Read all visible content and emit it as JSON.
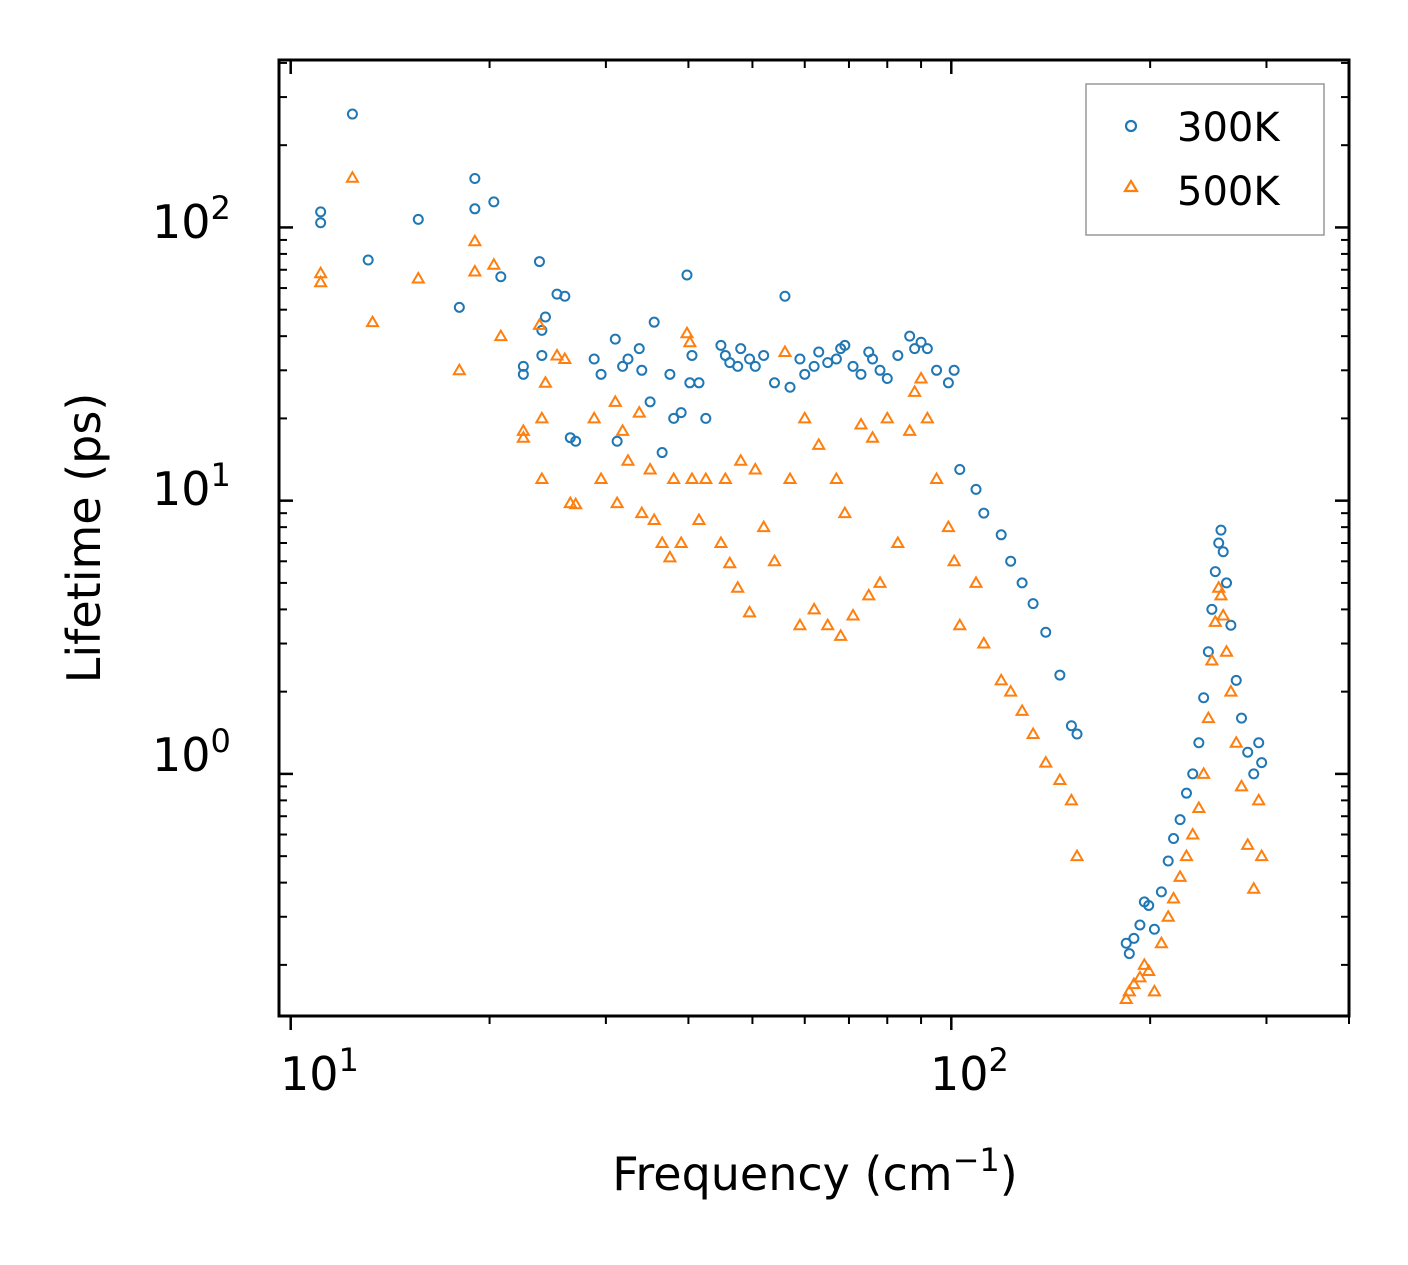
{
  "chart_data": {
    "type": "scatter",
    "xscale": "log",
    "yscale": "log",
    "xlabel": "Frequency",
    "xlabel_unit_base": "cm",
    "xlabel_unit_exp": "−1",
    "ylabel": "Lifetime (ps)",
    "xlim": [
      9.6,
      400
    ],
    "ylim": [
      0.13,
      410
    ],
    "x_ticks": [
      {
        "value": 10,
        "base": "10",
        "exp": "1"
      },
      {
        "value": 100,
        "base": "10",
        "exp": "2"
      }
    ],
    "y_ticks": [
      {
        "value": 1,
        "base": "10",
        "exp": "0"
      },
      {
        "value": 10,
        "base": "10",
        "exp": "1"
      },
      {
        "value": 100,
        "base": "10",
        "exp": "2"
      }
    ],
    "legend_position": "top-right",
    "series": [
      {
        "name": "300K",
        "marker": "circle",
        "color": "#1f77b4",
        "points": [
          [
            11.1,
            114
          ],
          [
            11.1,
            104
          ],
          [
            12.4,
            260
          ],
          [
            13.1,
            76
          ],
          [
            15.6,
            107
          ],
          [
            18.0,
            51
          ],
          [
            19.0,
            151
          ],
          [
            19.0,
            117
          ],
          [
            20.3,
            124
          ],
          [
            20.8,
            66
          ],
          [
            22.5,
            31
          ],
          [
            22.5,
            29
          ],
          [
            23.8,
            75
          ],
          [
            24.0,
            42
          ],
          [
            24.3,
            47
          ],
          [
            24.0,
            34
          ],
          [
            25.3,
            57
          ],
          [
            26.0,
            56
          ],
          [
            26.5,
            17
          ],
          [
            27.0,
            16.5
          ],
          [
            28.8,
            33
          ],
          [
            29.5,
            29
          ],
          [
            31.0,
            39
          ],
          [
            31.2,
            16.5
          ],
          [
            31.8,
            31
          ],
          [
            32.4,
            33
          ],
          [
            33.7,
            36
          ],
          [
            34.0,
            30
          ],
          [
            35.0,
            23
          ],
          [
            35.5,
            45
          ],
          [
            36.5,
            15
          ],
          [
            37.5,
            29
          ],
          [
            38.0,
            20
          ],
          [
            39.0,
            21
          ],
          [
            39.8,
            67
          ],
          [
            40.2,
            27
          ],
          [
            40.5,
            34
          ],
          [
            41.5,
            27
          ],
          [
            42.5,
            20
          ],
          [
            44.8,
            37
          ],
          [
            45.5,
            34
          ],
          [
            46.2,
            32
          ],
          [
            47.5,
            31
          ],
          [
            48.0,
            36
          ],
          [
            49.5,
            33
          ],
          [
            50.5,
            31
          ],
          [
            52.0,
            34
          ],
          [
            54.0,
            27
          ],
          [
            56.0,
            56
          ],
          [
            57.0,
            26
          ],
          [
            59.0,
            33
          ],
          [
            60.0,
            29
          ],
          [
            62.0,
            31
          ],
          [
            63.0,
            35
          ],
          [
            65.0,
            32
          ],
          [
            67.0,
            33
          ],
          [
            68.0,
            36
          ],
          [
            69.0,
            37
          ],
          [
            71.0,
            31
          ],
          [
            73.0,
            29
          ],
          [
            75.0,
            35
          ],
          [
            76.0,
            33
          ],
          [
            78.0,
            30
          ],
          [
            80.0,
            28
          ],
          [
            83.0,
            34
          ],
          [
            86.5,
            40
          ],
          [
            88.0,
            36
          ],
          [
            90.0,
            38
          ],
          [
            92.0,
            36
          ],
          [
            95.0,
            30
          ],
          [
            99.0,
            27
          ],
          [
            101.0,
            30
          ],
          [
            103.0,
            13
          ],
          [
            109.0,
            11
          ],
          [
            112.0,
            9
          ],
          [
            119.0,
            7.5
          ],
          [
            123.0,
            6
          ],
          [
            128.0,
            5
          ],
          [
            133.0,
            4.2
          ],
          [
            139.0,
            3.3
          ],
          [
            146.0,
            2.3
          ],
          [
            152.0,
            1.5
          ],
          [
            155.0,
            1.4
          ],
          [
            184.0,
            0.24
          ],
          [
            186.0,
            0.22
          ],
          [
            189.0,
            0.25
          ],
          [
            193.0,
            0.28
          ],
          [
            196.0,
            0.34
          ],
          [
            199.0,
            0.33
          ],
          [
            203.0,
            0.27
          ],
          [
            208.0,
            0.37
          ],
          [
            213.0,
            0.48
          ],
          [
            217.0,
            0.58
          ],
          [
            222.0,
            0.68
          ],
          [
            227.0,
            0.85
          ],
          [
            232.0,
            1.0
          ],
          [
            237.0,
            1.3
          ],
          [
            241.0,
            1.9
          ],
          [
            245.0,
            2.8
          ],
          [
            248.0,
            4.0
          ],
          [
            251.0,
            5.5
          ],
          [
            254.0,
            7.0
          ],
          [
            256.0,
            7.8
          ],
          [
            258.0,
            6.5
          ],
          [
            261.0,
            5.0
          ],
          [
            265.0,
            3.5
          ],
          [
            270.0,
            2.2
          ],
          [
            275.0,
            1.6
          ],
          [
            281.0,
            1.2
          ],
          [
            287.0,
            1.0
          ],
          [
            292.0,
            1.3
          ],
          [
            295.0,
            1.1
          ]
        ]
      },
      {
        "name": "500K",
        "marker": "triangle",
        "color": "#ff7f0e",
        "points": [
          [
            11.1,
            68
          ],
          [
            11.1,
            63
          ],
          [
            12.4,
            152
          ],
          [
            13.3,
            45
          ],
          [
            15.6,
            65
          ],
          [
            18.0,
            30
          ],
          [
            19.0,
            89
          ],
          [
            19.0,
            69
          ],
          [
            20.3,
            73
          ],
          [
            20.8,
            40
          ],
          [
            22.5,
            18
          ],
          [
            22.5,
            17
          ],
          [
            23.8,
            44
          ],
          [
            24.0,
            20
          ],
          [
            24.3,
            27
          ],
          [
            24.0,
            12
          ],
          [
            25.3,
            34
          ],
          [
            26.0,
            33
          ],
          [
            26.5,
            9.8
          ],
          [
            27.0,
            9.7
          ],
          [
            28.8,
            20
          ],
          [
            29.5,
            12
          ],
          [
            31.0,
            23
          ],
          [
            31.2,
            9.8
          ],
          [
            31.8,
            18
          ],
          [
            32.4,
            14
          ],
          [
            33.7,
            21
          ],
          [
            34.0,
            9
          ],
          [
            35.0,
            13
          ],
          [
            35.5,
            8.5
          ],
          [
            36.5,
            7.0
          ],
          [
            37.5,
            6.2
          ],
          [
            38.0,
            12
          ],
          [
            39.0,
            7.0
          ],
          [
            39.8,
            41
          ],
          [
            40.2,
            38
          ],
          [
            40.5,
            12
          ],
          [
            41.5,
            8.5
          ],
          [
            42.5,
            12
          ],
          [
            44.8,
            7.0
          ],
          [
            45.5,
            12
          ],
          [
            46.2,
            5.9
          ],
          [
            47.5,
            4.8
          ],
          [
            48.0,
            14
          ],
          [
            49.5,
            3.9
          ],
          [
            50.5,
            13
          ],
          [
            52.0,
            8.0
          ],
          [
            54.0,
            6.0
          ],
          [
            56.0,
            35
          ],
          [
            57.0,
            12
          ],
          [
            59.0,
            3.5
          ],
          [
            60.0,
            20
          ],
          [
            62.0,
            4.0
          ],
          [
            63.0,
            16
          ],
          [
            65.0,
            3.5
          ],
          [
            67.0,
            12
          ],
          [
            68.0,
            3.2
          ],
          [
            69.0,
            9.0
          ],
          [
            71.0,
            3.8
          ],
          [
            73.0,
            19
          ],
          [
            75.0,
            4.5
          ],
          [
            76.0,
            17
          ],
          [
            78.0,
            5.0
          ],
          [
            80.0,
            20
          ],
          [
            83.0,
            7.0
          ],
          [
            86.5,
            18
          ],
          [
            88.0,
            25
          ],
          [
            90.0,
            28
          ],
          [
            92.0,
            20
          ],
          [
            95.0,
            12
          ],
          [
            99.0,
            8.0
          ],
          [
            101.0,
            6.0
          ],
          [
            103.0,
            3.5
          ],
          [
            109.0,
            5.0
          ],
          [
            112.0,
            3.0
          ],
          [
            119.0,
            2.2
          ],
          [
            123.0,
            2.0
          ],
          [
            128.0,
            1.7
          ],
          [
            133.0,
            1.4
          ],
          [
            139.0,
            1.1
          ],
          [
            146.0,
            0.95
          ],
          [
            152.0,
            0.8
          ],
          [
            155.0,
            0.5
          ],
          [
            184.0,
            0.15
          ],
          [
            186.0,
            0.16
          ],
          [
            189.0,
            0.17
          ],
          [
            193.0,
            0.18
          ],
          [
            196.0,
            0.2
          ],
          [
            199.0,
            0.19
          ],
          [
            203.0,
            0.16
          ],
          [
            208.0,
            0.24
          ],
          [
            213.0,
            0.3
          ],
          [
            217.0,
            0.35
          ],
          [
            222.0,
            0.42
          ],
          [
            227.0,
            0.5
          ],
          [
            232.0,
            0.6
          ],
          [
            237.0,
            0.75
          ],
          [
            241.0,
            1.0
          ],
          [
            245.0,
            1.6
          ],
          [
            248.0,
            2.6
          ],
          [
            251.0,
            3.6
          ],
          [
            254.0,
            4.8
          ],
          [
            256.0,
            4.5
          ],
          [
            258.0,
            3.8
          ],
          [
            261.0,
            2.8
          ],
          [
            265.0,
            2.0
          ],
          [
            270.0,
            1.3
          ],
          [
            275.0,
            0.9
          ],
          [
            281.0,
            0.55
          ],
          [
            287.0,
            0.38
          ],
          [
            292.0,
            0.8
          ],
          [
            295.0,
            0.5
          ]
        ]
      }
    ]
  }
}
